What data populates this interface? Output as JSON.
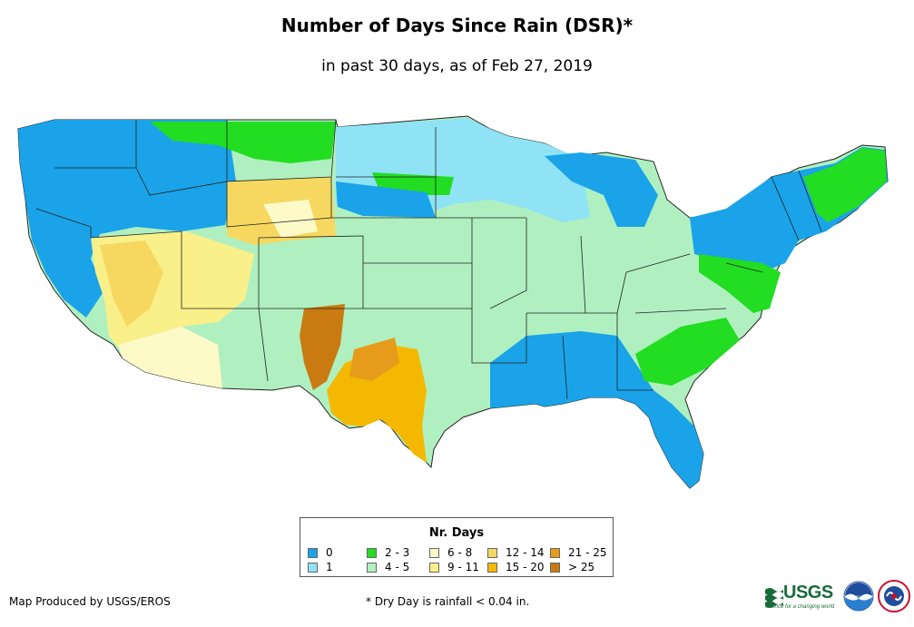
{
  "title": "Number of Days Since Rain (DSR)*",
  "subtitle": "in past 30 days, as of Feb 27, 2019",
  "legend": {
    "title": "Nr. Days",
    "items": [
      {
        "label": "0",
        "color": "#1aa3e8"
      },
      {
        "label": "1",
        "color": "#8fe3f5"
      },
      {
        "label": "2 - 3",
        "color": "#22dd22"
      },
      {
        "label": "4 - 5",
        "color": "#b0f0c0"
      },
      {
        "label": "6 - 8",
        "color": "#fdfac8"
      },
      {
        "label": "9 - 11",
        "color": "#f9f08a"
      },
      {
        "label": "12 - 14",
        "color": "#f6d860"
      },
      {
        "label": "15 - 20",
        "color": "#f5b800"
      },
      {
        "label": "21 - 25",
        "color": "#e69c1a"
      },
      {
        "label": "> 25",
        "color": "#c97a10"
      }
    ]
  },
  "footer": {
    "credit": "Map Produced by USGS/EROS",
    "note": "* Dry Day is rainfall < 0.04 in."
  },
  "logos": {
    "usgs": "USGS",
    "usgs_tagline": "science for a changing world",
    "noaa": "noaa",
    "nws": "NWS"
  }
}
